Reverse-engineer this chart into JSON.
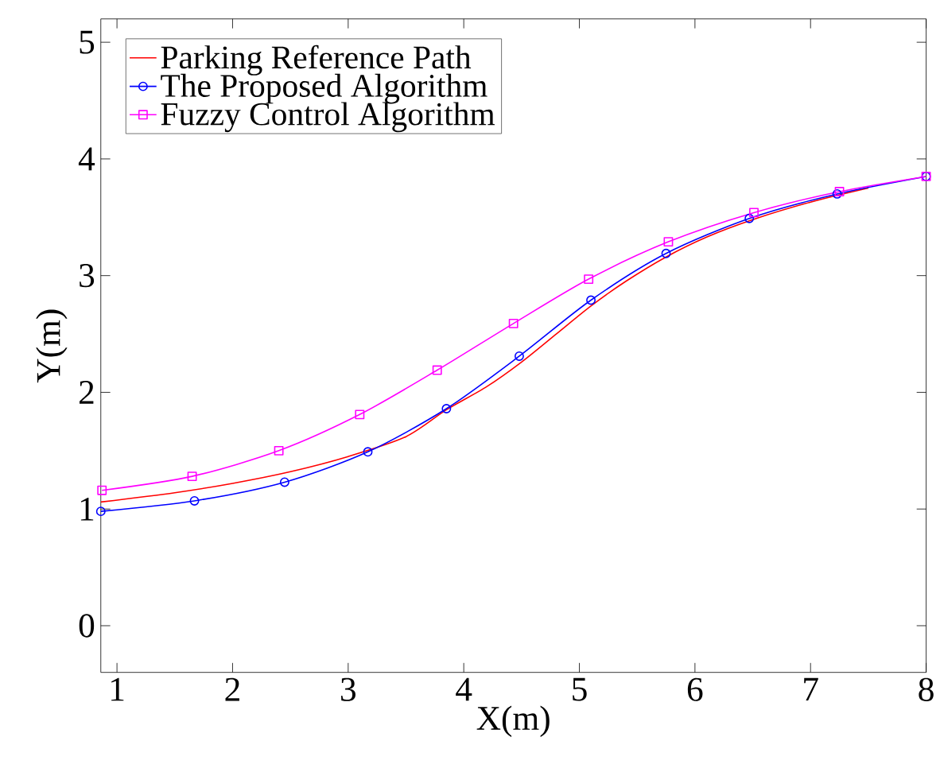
{
  "chart_data": {
    "type": "line",
    "xlabel": "X(m)",
    "ylabel": "Y(m)",
    "xlim": [
      0.86,
      8
    ],
    "ylim": [
      -0.4,
      5.2
    ],
    "xticks": [
      1,
      2,
      3,
      4,
      5,
      6,
      7,
      8
    ],
    "yticks": [
      0,
      1,
      2,
      3,
      4,
      5
    ],
    "legend": "top left",
    "grid": false,
    "series": [
      {
        "name": "Parking Reference Path",
        "color": "#ff0000",
        "marker": "none",
        "x": [
          0.86,
          1.5,
          2,
          2.5,
          3,
          3.5,
          3.85,
          4.2,
          4.5,
          4.8,
          5.1,
          5.4,
          5.75,
          6.1,
          6.5,
          7,
          7.5
        ],
        "values": [
          1.06,
          1.14,
          1.22,
          1.32,
          1.45,
          1.62,
          1.85,
          2.05,
          2.26,
          2.5,
          2.74,
          2.95,
          3.16,
          3.33,
          3.48,
          3.63,
          3.75
        ]
      },
      {
        "name": "The Proposed Algorithm",
        "color": "#0000ff",
        "marker": "circle",
        "x": [
          0.86,
          1.67,
          2.45,
          3.17,
          3.85,
          4.48,
          5.1,
          5.75,
          6.47,
          7.23,
          8
        ],
        "values": [
          0.98,
          1.07,
          1.23,
          1.49,
          1.86,
          2.31,
          2.79,
          3.19,
          3.49,
          3.7,
          3.85
        ]
      },
      {
        "name": "Fuzzy Control Algorithm",
        "color": "#ff00ff",
        "marker": "square",
        "x": [
          0.87,
          1.65,
          2.4,
          3.1,
          3.77,
          4.43,
          5.08,
          5.77,
          6.51,
          7.25,
          8
        ],
        "values": [
          1.16,
          1.28,
          1.5,
          1.81,
          2.19,
          2.59,
          2.97,
          3.29,
          3.54,
          3.72,
          3.85
        ]
      }
    ]
  }
}
